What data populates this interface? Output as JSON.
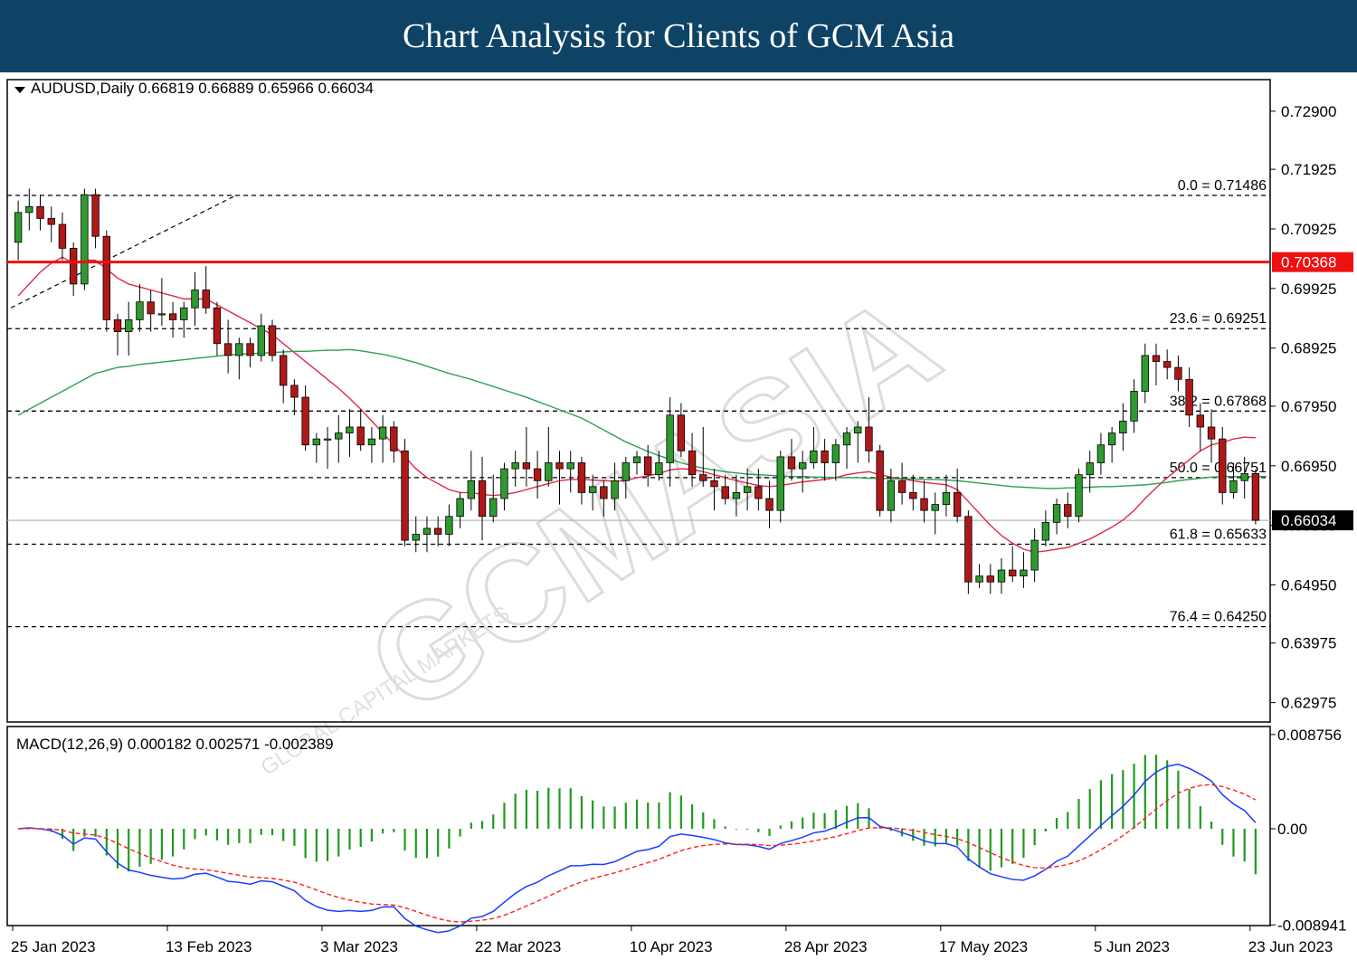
{
  "header": {
    "title": "Chart Analysis for Clients of GCM Asia"
  },
  "chart_data": [
    {
      "type": "candlestick",
      "title": "AUDUSD,Daily",
      "ohlc_label": "0.66819 0.66889 0.65966 0.66034",
      "current_price": 0.66034,
      "current_price_label": "0.66034",
      "resistance_level": 0.70368,
      "resistance_label": "0.70368",
      "ylim": [
        0.6265,
        0.7343
      ],
      "y_ticks": [
        "0.72900",
        "0.71925",
        "0.70925",
        "0.69925",
        "0.68925",
        "0.67950",
        "0.66950",
        "0.65950",
        "0.64950",
        "0.63975",
        "0.62975"
      ],
      "x_tick_labels": [
        "25 Jan 2023",
        "13 Feb 2023",
        "3 Mar 2023",
        "22 Mar 2023",
        "10 Apr 2023",
        "28 Apr 2023",
        "17 May 2023",
        "5 Jun 2023",
        "23 Jun 2023"
      ],
      "x_tick_index": [
        0,
        14,
        28,
        42,
        56,
        70,
        84,
        98,
        112
      ],
      "fibonacci": [
        {
          "label": "0.0 = 0.71486",
          "value": 0.71486
        },
        {
          "label": "23.6 = 0.69251",
          "value": 0.69251
        },
        {
          "label": "38.2 = 0.67868",
          "value": 0.67868
        },
        {
          "label": "50.0 = 0.66751",
          "value": 0.66751
        },
        {
          "label": "61.8 = 0.65633",
          "value": 0.65633
        },
        {
          "label": "76.4 = 0.64250",
          "value": 0.6425
        }
      ],
      "candles": [
        [
          0.707,
          0.714,
          0.704,
          0.712
        ],
        [
          0.712,
          0.716,
          0.709,
          0.713
        ],
        [
          0.713,
          0.715,
          0.709,
          0.711
        ],
        [
          0.711,
          0.713,
          0.707,
          0.71
        ],
        [
          0.71,
          0.712,
          0.704,
          0.706
        ],
        [
          0.706,
          0.707,
          0.698,
          0.7
        ],
        [
          0.7,
          0.716,
          0.699,
          0.715
        ],
        [
          0.715,
          0.716,
          0.706,
          0.708
        ],
        [
          0.708,
          0.709,
          0.692,
          0.694
        ],
        [
          0.694,
          0.695,
          0.688,
          0.692
        ],
        [
          0.692,
          0.697,
          0.688,
          0.694
        ],
        [
          0.694,
          0.7,
          0.692,
          0.697
        ],
        [
          0.697,
          0.699,
          0.692,
          0.695
        ],
        [
          0.695,
          0.701,
          0.693,
          0.695
        ],
        [
          0.695,
          0.697,
          0.691,
          0.694
        ],
        [
          0.694,
          0.697,
          0.691,
          0.696
        ],
        [
          0.696,
          0.702,
          0.693,
          0.699
        ],
        [
          0.699,
          0.703,
          0.695,
          0.696
        ],
        [
          0.696,
          0.697,
          0.688,
          0.69
        ],
        [
          0.69,
          0.694,
          0.685,
          0.688
        ],
        [
          0.688,
          0.691,
          0.684,
          0.69
        ],
        [
          0.69,
          0.691,
          0.686,
          0.688
        ],
        [
          0.688,
          0.695,
          0.687,
          0.693
        ],
        [
          0.693,
          0.694,
          0.687,
          0.688
        ],
        [
          0.688,
          0.689,
          0.68,
          0.683
        ],
        [
          0.683,
          0.684,
          0.678,
          0.681
        ],
        [
          0.681,
          0.683,
          0.672,
          0.673
        ],
        [
          0.673,
          0.675,
          0.67,
          0.674
        ],
        [
          0.674,
          0.676,
          0.669,
          0.674
        ],
        [
          0.674,
          0.678,
          0.67,
          0.675
        ],
        [
          0.675,
          0.679,
          0.671,
          0.676
        ],
        [
          0.676,
          0.679,
          0.672,
          0.673
        ],
        [
          0.673,
          0.676,
          0.67,
          0.674
        ],
        [
          0.674,
          0.678,
          0.67,
          0.676
        ],
        [
          0.676,
          0.677,
          0.67,
          0.672
        ],
        [
          0.672,
          0.674,
          0.656,
          0.657
        ],
        [
          0.657,
          0.661,
          0.655,
          0.658
        ],
        [
          0.658,
          0.661,
          0.655,
          0.659
        ],
        [
          0.659,
          0.661,
          0.656,
          0.658
        ],
        [
          0.658,
          0.663,
          0.656,
          0.661
        ],
        [
          0.661,
          0.665,
          0.659,
          0.664
        ],
        [
          0.664,
          0.672,
          0.662,
          0.667
        ],
        [
          0.667,
          0.671,
          0.657,
          0.661
        ],
        [
          0.661,
          0.668,
          0.66,
          0.664
        ],
        [
          0.664,
          0.67,
          0.662,
          0.669
        ],
        [
          0.669,
          0.672,
          0.666,
          0.67
        ],
        [
          0.67,
          0.676,
          0.666,
          0.669
        ],
        [
          0.669,
          0.672,
          0.664,
          0.667
        ],
        [
          0.667,
          0.676,
          0.666,
          0.67
        ],
        [
          0.67,
          0.672,
          0.663,
          0.669
        ],
        [
          0.669,
          0.672,
          0.665,
          0.67
        ],
        [
          0.67,
          0.671,
          0.663,
          0.665
        ],
        [
          0.665,
          0.668,
          0.662,
          0.666
        ],
        [
          0.666,
          0.667,
          0.661,
          0.664
        ],
        [
          0.664,
          0.67,
          0.662,
          0.667
        ],
        [
          0.667,
          0.671,
          0.664,
          0.67
        ],
        [
          0.67,
          0.672,
          0.668,
          0.671
        ],
        [
          0.671,
          0.673,
          0.666,
          0.668
        ],
        [
          0.668,
          0.672,
          0.667,
          0.67
        ],
        [
          0.67,
          0.681,
          0.666,
          0.678
        ],
        [
          0.678,
          0.68,
          0.671,
          0.672
        ],
        [
          0.672,
          0.675,
          0.666,
          0.668
        ],
        [
          0.668,
          0.676,
          0.666,
          0.667
        ],
        [
          0.667,
          0.669,
          0.662,
          0.666
        ],
        [
          0.666,
          0.668,
          0.663,
          0.664
        ],
        [
          0.664,
          0.668,
          0.661,
          0.665
        ],
        [
          0.665,
          0.669,
          0.662,
          0.666
        ],
        [
          0.666,
          0.669,
          0.662,
          0.664
        ],
        [
          0.664,
          0.667,
          0.659,
          0.662
        ],
        [
          0.662,
          0.672,
          0.66,
          0.671
        ],
        [
          0.671,
          0.674,
          0.667,
          0.669
        ],
        [
          0.669,
          0.672,
          0.665,
          0.67
        ],
        [
          0.67,
          0.676,
          0.669,
          0.672
        ],
        [
          0.672,
          0.674,
          0.667,
          0.67
        ],
        [
          0.67,
          0.674,
          0.667,
          0.673
        ],
        [
          0.673,
          0.676,
          0.669,
          0.675
        ],
        [
          0.675,
          0.677,
          0.67,
          0.676
        ],
        [
          0.676,
          0.681,
          0.67,
          0.672
        ],
        [
          0.672,
          0.673,
          0.661,
          0.662
        ],
        [
          0.662,
          0.669,
          0.66,
          0.667
        ],
        [
          0.667,
          0.67,
          0.663,
          0.665
        ],
        [
          0.665,
          0.668,
          0.662,
          0.664
        ],
        [
          0.664,
          0.667,
          0.66,
          0.662
        ],
        [
          0.662,
          0.665,
          0.658,
          0.663
        ],
        [
          0.663,
          0.668,
          0.661,
          0.665
        ],
        [
          0.665,
          0.669,
          0.66,
          0.661
        ],
        [
          0.661,
          0.662,
          0.648,
          0.65
        ],
        [
          0.65,
          0.653,
          0.649,
          0.651
        ],
        [
          0.651,
          0.653,
          0.648,
          0.65
        ],
        [
          0.65,
          0.654,
          0.648,
          0.652
        ],
        [
          0.652,
          0.656,
          0.65,
          0.651
        ],
        [
          0.651,
          0.655,
          0.649,
          0.652
        ],
        [
          0.652,
          0.659,
          0.65,
          0.657
        ],
        [
          0.657,
          0.662,
          0.656,
          0.66
        ],
        [
          0.66,
          0.664,
          0.658,
          0.663
        ],
        [
          0.663,
          0.665,
          0.659,
          0.661
        ],
        [
          0.661,
          0.669,
          0.66,
          0.668
        ],
        [
          0.668,
          0.672,
          0.665,
          0.67
        ],
        [
          0.67,
          0.675,
          0.668,
          0.673
        ],
        [
          0.673,
          0.676,
          0.67,
          0.675
        ],
        [
          0.675,
          0.68,
          0.672,
          0.677
        ],
        [
          0.677,
          0.684,
          0.675,
          0.682
        ],
        [
          0.682,
          0.69,
          0.68,
          0.688
        ],
        [
          0.688,
          0.69,
          0.683,
          0.687
        ],
        [
          0.687,
          0.689,
          0.684,
          0.686
        ],
        [
          0.686,
          0.688,
          0.682,
          0.684
        ],
        [
          0.684,
          0.686,
          0.676,
          0.678
        ],
        [
          0.678,
          0.68,
          0.672,
          0.676
        ],
        [
          0.676,
          0.679,
          0.67,
          0.674
        ],
        [
          0.674,
          0.676,
          0.663,
          0.665
        ],
        [
          0.665,
          0.67,
          0.664,
          0.667
        ],
        [
          0.667,
          0.671,
          0.664,
          0.6682
        ],
        [
          0.66819,
          0.66889,
          0.65966,
          0.66034
        ]
      ],
      "moving_averages": [
        {
          "name": "short",
          "color": "#e0294a",
          "values": [
            0.698,
            0.7,
            0.702,
            0.7035,
            0.7045,
            0.7035,
            0.704,
            0.704,
            0.7025,
            0.701,
            0.7,
            0.6995,
            0.699,
            0.6985,
            0.698,
            0.6975,
            0.6975,
            0.6975,
            0.6965,
            0.6955,
            0.6945,
            0.6935,
            0.6925,
            0.6915,
            0.69,
            0.6885,
            0.687,
            0.6855,
            0.684,
            0.6825,
            0.6808,
            0.679,
            0.677,
            0.675,
            0.673,
            0.671,
            0.669,
            0.6675,
            0.6665,
            0.6655,
            0.665,
            0.665,
            0.6647,
            0.6645,
            0.6647,
            0.665,
            0.6655,
            0.666,
            0.6665,
            0.667,
            0.6672,
            0.6672,
            0.6671,
            0.667,
            0.6669,
            0.667,
            0.6675,
            0.6678,
            0.6682,
            0.6688,
            0.669,
            0.6689,
            0.6685,
            0.668,
            0.6675,
            0.667,
            0.6666,
            0.6662,
            0.666,
            0.6662,
            0.6665,
            0.6668,
            0.667,
            0.6672,
            0.6675,
            0.668,
            0.6683,
            0.6685,
            0.668,
            0.6676,
            0.6673,
            0.667,
            0.6667,
            0.6665,
            0.6663,
            0.6655,
            0.6635,
            0.6615,
            0.6595,
            0.6578,
            0.6565,
            0.6555,
            0.655,
            0.6552,
            0.6555,
            0.6558,
            0.6565,
            0.6572,
            0.6582,
            0.6592,
            0.6604,
            0.662,
            0.664,
            0.6658,
            0.6675,
            0.669,
            0.6705,
            0.672,
            0.673,
            0.6734,
            0.674,
            0.6743,
            0.6742
          ]
        },
        {
          "name": "long",
          "color": "#2e9e57",
          "values": [
            0.678,
            0.679,
            0.68,
            0.681,
            0.682,
            0.683,
            0.684,
            0.685,
            0.6855,
            0.686,
            0.6862,
            0.6865,
            0.6867,
            0.6869,
            0.6871,
            0.6873,
            0.6875,
            0.6877,
            0.6879,
            0.6881,
            0.6882,
            0.6883,
            0.6884,
            0.6885,
            0.6886,
            0.6887,
            0.6887,
            0.6888,
            0.6889,
            0.6889,
            0.689,
            0.6888,
            0.6885,
            0.6882,
            0.6878,
            0.6873,
            0.6868,
            0.6862,
            0.6856,
            0.685,
            0.6845,
            0.684,
            0.6834,
            0.6828,
            0.6822,
            0.6816,
            0.681,
            0.6803,
            0.6796,
            0.6789,
            0.6782,
            0.6775,
            0.6765,
            0.6755,
            0.6745,
            0.6735,
            0.6727,
            0.6719,
            0.6712,
            0.6706,
            0.67,
            0.6695,
            0.6691,
            0.6688,
            0.6685,
            0.6683,
            0.6681,
            0.668,
            0.6679,
            0.6678,
            0.6677,
            0.6677,
            0.6676,
            0.6676,
            0.6675,
            0.6675,
            0.6675,
            0.6674,
            0.6674,
            0.6673,
            0.6673,
            0.6673,
            0.6672,
            0.6672,
            0.6671,
            0.667,
            0.6668,
            0.6666,
            0.6664,
            0.6662,
            0.666,
            0.6659,
            0.6658,
            0.6657,
            0.6657,
            0.6658,
            0.6658,
            0.6659,
            0.666,
            0.666,
            0.6661,
            0.6662,
            0.6663,
            0.6665,
            0.6667,
            0.667,
            0.6672,
            0.6674,
            0.6676,
            0.6677,
            0.6677,
            0.6677,
            0.6677,
            0.6677
          ]
        }
      ],
      "trendline": [
        [
          0,
          0.696
        ],
        [
          18,
          0.7148
        ]
      ]
    },
    {
      "type": "macd",
      "title_label": "MACD(12,26,9) 0.000182 0.002571 -0.002389",
      "ylim": [
        -0.009,
        0.0095
      ],
      "y_tick_labels": [
        "0.008756",
        "0.00",
        "-0.008941"
      ],
      "y_tick_values": [
        0.008756,
        0,
        -0.008941
      ],
      "macd_color": "#1a3cff",
      "signal_color": "#ff2020",
      "histogram_color": "#1e9a1e"
    }
  ],
  "watermark": {
    "text": "GCMASIA",
    "subtext": "GLOBAL CAPITAL MARKETS"
  }
}
